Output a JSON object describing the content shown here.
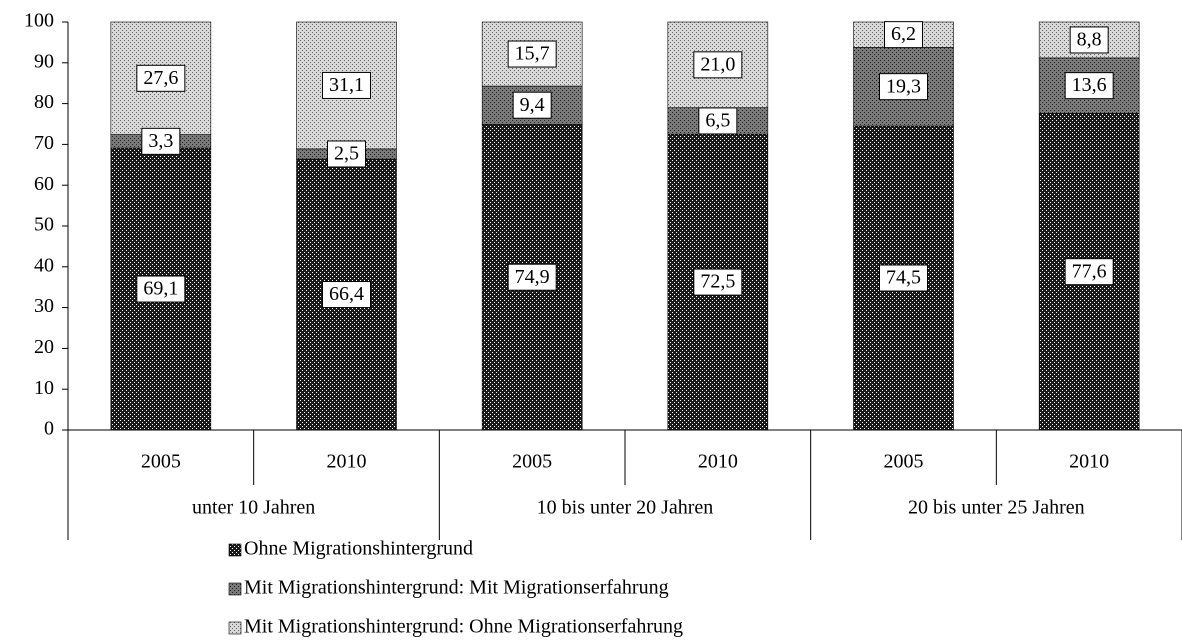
{
  "chart_data": {
    "type": "stacked_bar",
    "categories": [
      "2005",
      "2010",
      "2005",
      "2010",
      "2005",
      "2010"
    ],
    "groups": [
      "unter 10 Jahren",
      "10 bis unter 20 Jahren",
      "20 bis unter 25 Jahren"
    ],
    "series": [
      {
        "name": "Ohne Migrationshintergrund",
        "color": "#1a1a1a",
        "values": [
          69.1,
          66.4,
          74.9,
          72.5,
          74.5,
          77.6
        ],
        "value_labels": [
          "69,1",
          "66,4",
          "74,9",
          "72,5",
          "74,5",
          "77,6"
        ]
      },
      {
        "name": "Mit Migrationshintergrund: Mit Migrationserfahrung",
        "color": "#7a7a7a",
        "values": [
          3.3,
          2.5,
          9.4,
          6.5,
          19.3,
          13.6
        ],
        "value_labels": [
          "3,3",
          "2,5",
          "9,4",
          "6,5",
          "19,3",
          "13,6"
        ]
      },
      {
        "name": "Mit Migrationshintergrund: Ohne Migrationserfahrung",
        "color": "#d8d8d8",
        "values": [
          27.6,
          31.1,
          15.7,
          21.0,
          6.2,
          8.8
        ],
        "value_labels": [
          "27,6",
          "31,1",
          "15,7",
          "21,0",
          "6,2",
          "8,8"
        ]
      }
    ],
    "ylim": [
      0,
      100
    ],
    "yticks": [
      0,
      10,
      20,
      30,
      40,
      50,
      60,
      70,
      80,
      90,
      100
    ],
    "grid": false
  }
}
